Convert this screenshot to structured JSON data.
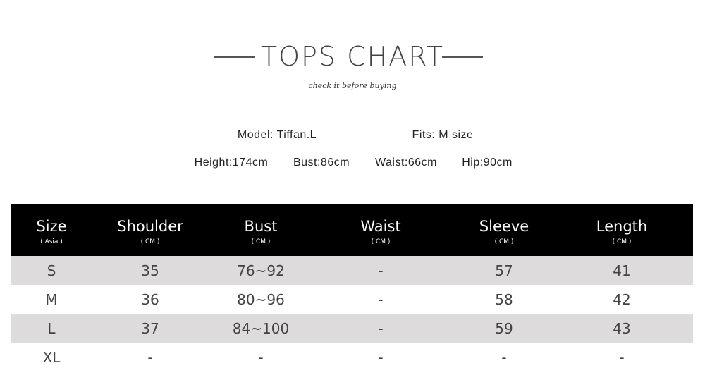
{
  "header": {
    "title": "TOPS CHART",
    "subtitle": "check it before buying"
  },
  "model": {
    "name": "Model: Tiffan.L",
    "fits": "Fits: M size",
    "height": "Height:174cm",
    "bust": "Bust:86cm",
    "waist": "Waist:66cm",
    "hip": "Hip:90cm"
  },
  "table": {
    "columns": [
      {
        "label": "Size",
        "unit": "( Asia )"
      },
      {
        "label": "Shoulder",
        "unit": "( CM )"
      },
      {
        "label": "Bust",
        "unit": "( CM )"
      },
      {
        "label": "Waist",
        "unit": "( CM )"
      },
      {
        "label": "Sleeve",
        "unit": "( CM )"
      },
      {
        "label": "Length",
        "unit": "( CM )"
      }
    ],
    "rows": [
      [
        "S",
        "35",
        "76~92",
        "-",
        "57",
        "41"
      ],
      [
        "M",
        "36",
        "80~96",
        "-",
        "58",
        "42"
      ],
      [
        "L",
        "37",
        "84~100",
        "-",
        "59",
        "43"
      ],
      [
        "XL",
        "-",
        "-",
        "-",
        "-",
        "-"
      ]
    ]
  },
  "colors": {
    "header_bg": "#000000",
    "stripe": "#dddbdc",
    "text": "#444444"
  }
}
